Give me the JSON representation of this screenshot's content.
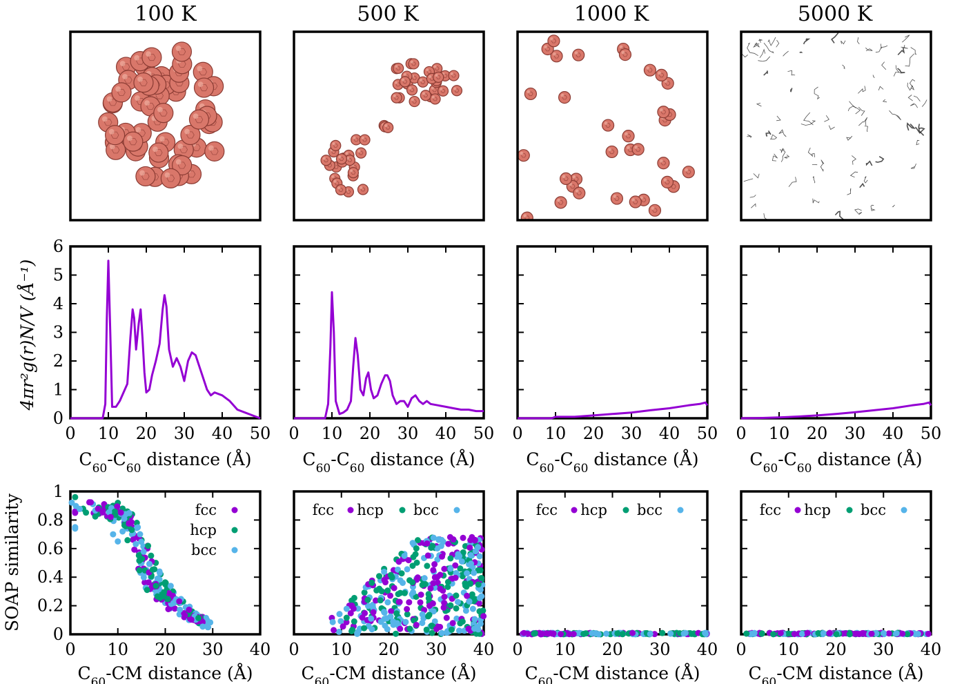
{
  "temperatures": [
    "100 K",
    "500 K",
    "1000 K",
    "5000 K"
  ],
  "colors": {
    "rdf_line": "#9400d3",
    "fcc": "#9400d3",
    "hcp": "#009e73",
    "bcc": "#56b4e9",
    "molecule": "#d9776a",
    "molecule_edge": "#8a3b33",
    "chain": "#222222"
  },
  "icons": {
    "snapshot": "c60-molecule-snapshot",
    "fragment": "carbon-chain-fragment"
  },
  "rdf": {
    "ylabel": "4πr²g(r)N/V (Å⁻¹)",
    "xlabel_prefix": "C",
    "xlabel_sub1": "60",
    "xlabel_mid": "-C",
    "xlabel_sub2": "60",
    "xlabel_suffix": " distance (Å)"
  },
  "soap": {
    "ylabel": "SOAP similarity",
    "xlabel_prefix": "C",
    "xlabel_sub": "60",
    "xlabel_suffix": "-CM distance (Å)",
    "legend": [
      "fcc",
      "hcp",
      "bcc"
    ]
  },
  "chart_data": [
    {
      "panel": "rdf-100K",
      "type": "line",
      "xlim": [
        0,
        50
      ],
      "ylim": [
        0,
        6
      ],
      "xticks": [
        0,
        10,
        20,
        30,
        40,
        50
      ],
      "yticks": [
        0,
        1,
        2,
        3,
        4,
        5,
        6
      ],
      "series": [
        {
          "x": [
            0,
            8.5,
            9.2,
            9.6,
            10,
            10.5,
            11,
            12,
            13,
            14,
            15,
            15.8,
            16.4,
            16.8,
            17.3,
            18,
            18.5,
            19,
            19.5,
            20,
            20.8,
            21.5,
            22.5,
            23.5,
            24.3,
            24.8,
            25.3,
            26,
            27,
            28,
            29,
            30,
            31,
            32,
            33,
            34,
            35,
            36,
            37,
            38,
            40,
            42,
            44,
            46,
            48,
            50
          ],
          "y": [
            0,
            0,
            0.5,
            3.5,
            5.5,
            3.0,
            0.4,
            0.4,
            0.6,
            0.9,
            1.2,
            2.8,
            3.8,
            3.5,
            2.4,
            3.3,
            3.8,
            2.8,
            1.6,
            0.9,
            1.0,
            1.5,
            2.0,
            2.6,
            3.8,
            4.3,
            3.9,
            2.4,
            1.8,
            2.1,
            1.8,
            1.3,
            2.0,
            2.3,
            2.2,
            1.8,
            1.4,
            1.0,
            0.8,
            0.9,
            0.8,
            0.6,
            0.3,
            0.2,
            0.1,
            0.0
          ]
        }
      ]
    },
    {
      "panel": "rdf-500K",
      "type": "line",
      "xlim": [
        0,
        50
      ],
      "ylim": [
        0,
        6
      ],
      "xticks": [
        0,
        10,
        20,
        30,
        40,
        50
      ],
      "series": [
        {
          "x": [
            0,
            8.2,
            9.0,
            9.6,
            10,
            10.5,
            11,
            12,
            13,
            14,
            15,
            15.6,
            16.2,
            16.8,
            17.5,
            18.3,
            19,
            19.6,
            20.3,
            21,
            22,
            23,
            24,
            24.6,
            25.3,
            26,
            27,
            28,
            29,
            30,
            31,
            32,
            33,
            34,
            35,
            36,
            38,
            40,
            42,
            44,
            46,
            48,
            50
          ],
          "y": [
            0,
            0,
            0.5,
            2.5,
            4.4,
            3.0,
            0.6,
            0.15,
            0.2,
            0.3,
            0.6,
            1.8,
            2.8,
            2.2,
            1.0,
            0.8,
            1.4,
            1.6,
            1.0,
            0.7,
            0.8,
            1.2,
            1.5,
            1.5,
            1.3,
            0.8,
            0.5,
            0.6,
            0.6,
            0.4,
            0.7,
            0.8,
            0.6,
            0.5,
            0.6,
            0.5,
            0.45,
            0.4,
            0.35,
            0.3,
            0.3,
            0.25,
            0.25
          ]
        }
      ]
    },
    {
      "panel": "rdf-1000K",
      "type": "line",
      "xlim": [
        0,
        50
      ],
      "ylim": [
        0,
        6
      ],
      "xticks": [
        0,
        10,
        20,
        30,
        40,
        50
      ],
      "series": [
        {
          "x": [
            0,
            9,
            10,
            15,
            20,
            25,
            30,
            35,
            40,
            45,
            48,
            49.5,
            50
          ],
          "y": [
            0,
            0,
            0.05,
            0.05,
            0.1,
            0.15,
            0.2,
            0.28,
            0.35,
            0.45,
            0.5,
            0.55,
            0.45
          ]
        }
      ]
    },
    {
      "panel": "rdf-5000K",
      "type": "line",
      "xlim": [
        0,
        50
      ],
      "ylim": [
        0,
        6
      ],
      "xticks": [
        0,
        10,
        20,
        30,
        40,
        50
      ],
      "series": [
        {
          "x": [
            0,
            5,
            10,
            15,
            20,
            25,
            30,
            35,
            40,
            45,
            48,
            49.5,
            50
          ],
          "y": [
            0,
            0.01,
            0.03,
            0.06,
            0.1,
            0.15,
            0.21,
            0.28,
            0.35,
            0.45,
            0.5,
            0.55,
            0.45
          ]
        }
      ]
    },
    {
      "panel": "soap-100K",
      "type": "scatter",
      "xlim": [
        0,
        40
      ],
      "ylim": [
        0,
        1
      ],
      "xticks": [
        0,
        10,
        20,
        30,
        40
      ],
      "yticks": [
        0,
        0.2,
        0.4,
        0.6,
        0.8,
        1
      ],
      "ytick_labels": [
        "0",
        "0.2",
        "0.4",
        "0.6",
        "0.8",
        "1"
      ],
      "legend_position": "top-right-stacked",
      "trend": [
        [
          1,
          0.9,
          0.1
        ],
        [
          9,
          0.85,
          0.1
        ],
        [
          12,
          0.8,
          0.1
        ],
        [
          15,
          0.55,
          0.25
        ],
        [
          18,
          0.35,
          0.2
        ],
        [
          21,
          0.25,
          0.15
        ],
        [
          25,
          0.15,
          0.08
        ],
        [
          29,
          0.07,
          0.05
        ]
      ],
      "series": [
        {
          "name": "fcc",
          "x": [
            1,
            1,
            9,
            10,
            11,
            12,
            13,
            15,
            16,
            17,
            18,
            19,
            20,
            21,
            22,
            24,
            26,
            29
          ],
          "y": [
            0.85,
            0.86,
            0.83,
            0.86,
            0.84,
            0.8,
            0.75,
            0.55,
            0.45,
            0.4,
            0.35,
            0.3,
            0.22,
            0.2,
            0.18,
            0.12,
            0.1,
            0.05
          ]
        },
        {
          "name": "hcp",
          "x": [
            1,
            9,
            10,
            11,
            12,
            13,
            14,
            15,
            16,
            17,
            18,
            19,
            20,
            21,
            22,
            23,
            25,
            27,
            29
          ],
          "y": [
            0.96,
            0.9,
            0.92,
            0.88,
            0.86,
            0.84,
            0.78,
            0.66,
            0.6,
            0.55,
            0.5,
            0.42,
            0.35,
            0.28,
            0.25,
            0.22,
            0.15,
            0.12,
            0.05
          ]
        },
        {
          "name": "bcc",
          "x": [
            1,
            1,
            9,
            10,
            11,
            12,
            13,
            15,
            16,
            17,
            18,
            19,
            20,
            21,
            23,
            25,
            27,
            29
          ],
          "y": [
            0.74,
            0.75,
            0.7,
            0.65,
            0.72,
            0.74,
            0.7,
            0.5,
            0.45,
            0.4,
            0.36,
            0.3,
            0.22,
            0.18,
            0.14,
            0.1,
            0.08,
            0.05
          ]
        }
      ]
    },
    {
      "panel": "soap-500K",
      "type": "scatter",
      "xlim": [
        0,
        40
      ],
      "ylim": [
        0,
        1
      ],
      "xticks": [
        0,
        10,
        20,
        30,
        40
      ],
      "legend_position": "top-row",
      "cloud": {
        "x_range": [
          7,
          40
        ],
        "y_range": [
          0.0,
          0.68
        ]
      },
      "series": [
        {
          "name": "fcc"
        },
        {
          "name": "hcp"
        },
        {
          "name": "bcc"
        }
      ]
    },
    {
      "panel": "soap-1000K",
      "type": "scatter",
      "xlim": [
        0,
        40
      ],
      "ylim": [
        0,
        1
      ],
      "xticks": [
        0,
        10,
        20,
        30,
        40
      ],
      "legend_position": "top-row",
      "cloud": {
        "x_range": [
          1,
          40
        ],
        "y_range": [
          0.0,
          0.01
        ]
      },
      "series": [
        {
          "name": "fcc"
        },
        {
          "name": "hcp"
        },
        {
          "name": "bcc"
        }
      ]
    },
    {
      "panel": "soap-5000K",
      "type": "scatter",
      "xlim": [
        0,
        40
      ],
      "ylim": [
        0,
        1
      ],
      "xticks": [
        0,
        10,
        20,
        30,
        40
      ],
      "legend_position": "top-row",
      "cloud": {
        "x_range": [
          1,
          40
        ],
        "y_range": [
          0.0,
          0.01
        ]
      },
      "series": [
        {
          "name": "fcc"
        },
        {
          "name": "hcp"
        },
        {
          "name": "bcc"
        }
      ]
    }
  ]
}
